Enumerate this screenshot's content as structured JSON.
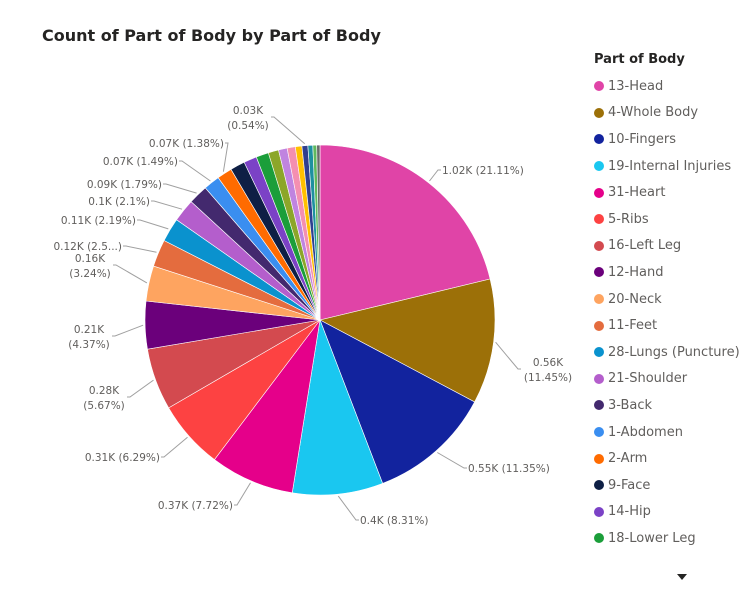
{
  "chart_data": {
    "type": "pie",
    "title": "Count of Part of Body by Part of Body",
    "legend_title": "Part of Body",
    "legend_placement": "right",
    "slices": [
      {
        "name": "13-Head",
        "value": 1.02,
        "percent": 21.11,
        "color": "#E044A7",
        "label": "1.02K (21.11%)"
      },
      {
        "name": "4-Whole Body",
        "value": 0.56,
        "percent": 11.45,
        "color": "#9C7008",
        "label": [
          "0.56K",
          "(11.45%)"
        ]
      },
      {
        "name": "10-Fingers",
        "value": 0.55,
        "percent": 11.35,
        "color": "#12239E",
        "label": "0.55K (11.35%)"
      },
      {
        "name": "19-Internal Injuries",
        "value": 0.4,
        "percent": 8.31,
        "color": "#1AC7F0",
        "label": "0.4K (8.31%)"
      },
      {
        "name": "31-Heart",
        "value": 0.37,
        "percent": 7.72,
        "color": "#E5008A",
        "label": "0.37K (7.72%)"
      },
      {
        "name": "5-Ribs",
        "value": 0.31,
        "percent": 6.29,
        "color": "#FD4242",
        "label": "0.31K (6.29%)"
      },
      {
        "name": "16-Left Leg",
        "value": 0.28,
        "percent": 5.67,
        "color": "#D34A4F",
        "label": [
          "0.28K",
          "(5.67%)"
        ]
      },
      {
        "name": "12-Hand",
        "value": 0.21,
        "percent": 4.37,
        "color": "#6B007B",
        "label": [
          "0.21K",
          "(4.37%)"
        ]
      },
      {
        "name": "20-Neck",
        "value": 0.16,
        "percent": 3.24,
        "color": "#FEA460",
        "label": [
          "0.16K",
          "(3.24%)"
        ]
      },
      {
        "name": "11-Feet",
        "value": 0.12,
        "percent": 2.5,
        "color": "#E46C3E",
        "label": "0.12K (2.5...)"
      },
      {
        "name": "28-Lungs (Puncture)",
        "value": 0.11,
        "percent": 2.19,
        "color": "#0A92CE",
        "label": "0.11K (2.19%)"
      },
      {
        "name": "21-Shoulder",
        "value": 0.1,
        "percent": 2.1,
        "color": "#B45ECC",
        "label": "0.1K (2.1%)"
      },
      {
        "name": "3-Back",
        "value": 0.09,
        "percent": 1.79,
        "color": "#43296E",
        "label": "0.09K (1.79%)"
      },
      {
        "name": "1-Abdomen",
        "value": 0.07,
        "percent": 1.49,
        "color": "#3A8EF0",
        "label": "0.07K (1.49%)"
      },
      {
        "name": "2-Arm",
        "value": 0.07,
        "percent": 1.38,
        "color": "#FF6B00",
        "label": "0.07K (1.38%)"
      },
      {
        "name": "9-Face",
        "value": 0.07,
        "percent": 1.35,
        "color": "#0E1F45",
        "label": ""
      },
      {
        "name": "14-Hip",
        "value": 0.06,
        "percent": 1.2,
        "color": "#7B42C6",
        "label": ""
      },
      {
        "name": "18-Lower Leg",
        "value": 0.06,
        "percent": 1.15,
        "color": "#1B9E3A",
        "label": ""
      },
      {
        "name": "",
        "value": 0.05,
        "percent": 0.95,
        "color": "#8CA629",
        "label": ""
      },
      {
        "name": "",
        "value": 0.04,
        "percent": 0.8,
        "color": "#C084E0",
        "label": ""
      },
      {
        "name": "",
        "value": 0.04,
        "percent": 0.75,
        "color": "#F48FB1",
        "label": ""
      },
      {
        "name": "",
        "value": 0.03,
        "percent": 0.6,
        "color": "#FFC000",
        "label": ""
      },
      {
        "name": "",
        "value": 0.03,
        "percent": 0.54,
        "color": "#2F3F8F",
        "label": [
          "0.03K",
          "(0.54%)"
        ]
      },
      {
        "name": "",
        "value": 0.02,
        "percent": 0.45,
        "color": "#1E90A0",
        "label": ""
      },
      {
        "name": "",
        "value": 0.02,
        "percent": 0.35,
        "color": "#5FB85F",
        "label": ""
      },
      {
        "name": "",
        "value": 0.01,
        "percent": 0.3,
        "color": "#6A6A6A",
        "label": ""
      }
    ]
  }
}
